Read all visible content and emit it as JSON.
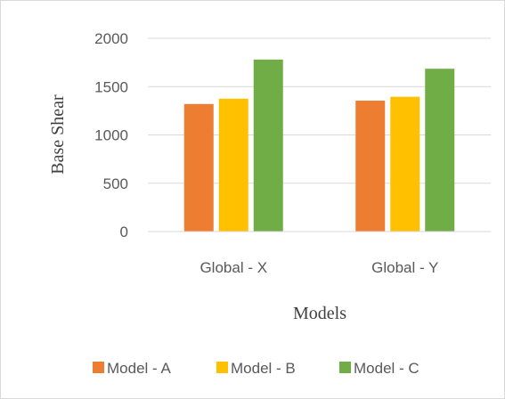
{
  "chart_data": {
    "type": "bar",
    "title": "",
    "xlabel": "Models",
    "ylabel": "Base Shear",
    "categories": [
      "Global - X",
      "Global - Y"
    ],
    "ylim": [
      0,
      2000
    ],
    "yticks": [
      "0",
      "500",
      "1000",
      "1500",
      "2000"
    ],
    "grid": true,
    "legend_position": "bottom",
    "series": [
      {
        "name": "Model - A",
        "color": "#ED7D31",
        "values": [
          1320,
          1355
        ]
      },
      {
        "name": "Model - B",
        "color": "#FFC000",
        "values": [
          1375,
          1395
        ]
      },
      {
        "name": "Model - C",
        "color": "#70AD47",
        "values": [
          1780,
          1685
        ]
      }
    ]
  }
}
